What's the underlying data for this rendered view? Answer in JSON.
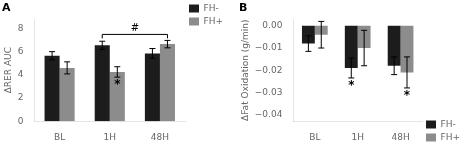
{
  "chart_data": [
    {
      "type": "bar",
      "title": "A",
      "y_label": "ΔRER AUC",
      "categories": [
        "BL",
        "1H",
        "48H"
      ],
      "series": [
        {
          "name": "FH-",
          "color": "#1c1c1c",
          "values": [
            5.65,
            6.55,
            5.85
          ],
          "errors": [
            0.35,
            0.35,
            0.42
          ]
        },
        {
          "name": "FH+",
          "color": "#8c8c8c",
          "values": [
            4.6,
            4.25,
            6.65
          ],
          "errors": [
            0.52,
            0.45,
            0.32
          ]
        }
      ],
      "ylim": [
        0,
        8.8
      ],
      "yticks": [
        0,
        2,
        4,
        6,
        8
      ],
      "grid": false,
      "legend": "upper right",
      "annotations": [
        {
          "text": "*",
          "category": "1H",
          "series": "FH+"
        },
        {
          "text": "#",
          "from": "1H",
          "to": "48H"
        }
      ]
    },
    {
      "type": "bar",
      "title": "B",
      "y_label": "ΔFat Oxidation (g/min)",
      "categories": [
        "BL",
        "1H",
        "48H"
      ],
      "series": [
        {
          "name": "FH-",
          "color": "#1c1c1c",
          "values": [
            -0.008,
            -0.019,
            -0.018
          ],
          "errors": [
            0.0035,
            0.0045,
            0.004
          ]
        },
        {
          "name": "FH+",
          "color": "#8c8c8c",
          "values": [
            -0.004,
            -0.01,
            -0.021
          ],
          "errors": [
            0.006,
            0.008,
            0.007
          ]
        }
      ],
      "ylim": [
        -0.043,
        0.003
      ],
      "yticks": [
        {
          "value": 0.0,
          "label": "0.00"
        },
        {
          "value": -0.01,
          "label": "−0.01"
        },
        {
          "value": -0.02,
          "label": "−0.02"
        },
        {
          "value": -0.03,
          "label": "−0.03"
        },
        {
          "value": -0.04,
          "label": "−0.04"
        }
      ],
      "grid": false,
      "legend": "lower right",
      "annotations": [
        {
          "text": "*",
          "category": "1H",
          "series": "FH-"
        },
        {
          "text": "*",
          "category": "48H",
          "series": "FH+"
        }
      ]
    }
  ]
}
